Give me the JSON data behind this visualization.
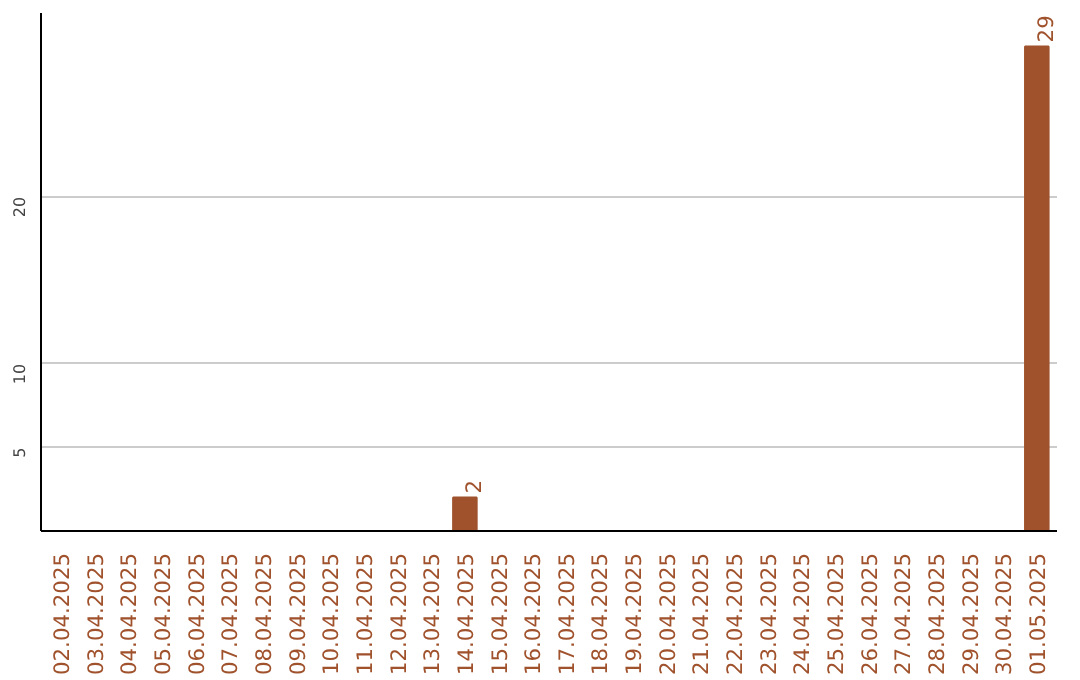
{
  "chart_data": {
    "type": "bar",
    "categories": [
      "02.04.2025",
      "03.04.2025",
      "04.04.2025",
      "05.04.2025",
      "06.04.2025",
      "07.04.2025",
      "08.04.2025",
      "09.04.2025",
      "10.04.2025",
      "11.04.2025",
      "12.04.2025",
      "13.04.2025",
      "14.04.2025",
      "15.04.2025",
      "16.04.2025",
      "17.04.2025",
      "18.04.2025",
      "19.04.2025",
      "20.04.2025",
      "21.04.2025",
      "22.04.2025",
      "23.04.2025",
      "24.04.2025",
      "25.04.2025",
      "26.04.2025",
      "27.04.2025",
      "28.04.2025",
      "29.04.2025",
      "30.04.2025",
      "01.05.2025"
    ],
    "values": [
      0,
      0,
      0,
      0,
      0,
      0,
      0,
      0,
      0,
      0,
      0,
      0,
      2,
      0,
      0,
      0,
      0,
      0,
      0,
      0,
      0,
      0,
      0,
      0,
      0,
      0,
      0,
      0,
      0,
      29
    ],
    "value_labels": [
      null,
      null,
      null,
      null,
      null,
      null,
      null,
      null,
      null,
      null,
      null,
      null,
      "2",
      null,
      null,
      null,
      null,
      null,
      null,
      null,
      null,
      null,
      null,
      null,
      null,
      null,
      null,
      null,
      null,
      "29"
    ],
    "color": "#a0522d",
    "ylim": [
      0,
      31
    ],
    "yticks": [
      5,
      10,
      20
    ],
    "grid": "y"
  }
}
